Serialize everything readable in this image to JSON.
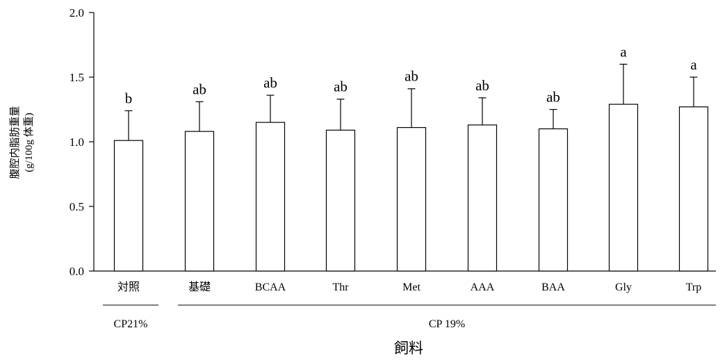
{
  "chart_data": {
    "type": "bar",
    "title": "",
    "xlabel": "飼料",
    "ylabel": [
      "腹腔内脂肪重量",
      "(g/100g 体重)"
    ],
    "ylim": [
      0,
      2.0
    ],
    "yticks": [
      "0.0",
      "0.5",
      "1.0",
      "1.5",
      "2.0"
    ],
    "categories": [
      "対照",
      "基礎",
      "BCAA",
      "Thr",
      "Met",
      "AAA",
      "BAA",
      "Gly",
      "Trp"
    ],
    "values": [
      1.01,
      1.08,
      1.15,
      1.09,
      1.11,
      1.13,
      1.1,
      1.29,
      1.27
    ],
    "error": [
      0.23,
      0.23,
      0.21,
      0.24,
      0.3,
      0.21,
      0.15,
      0.31,
      0.23
    ],
    "significance": [
      "b",
      "ab",
      "ab",
      "ab",
      "ab",
      "ab",
      "ab",
      "a",
      "a"
    ],
    "groups": [
      {
        "label": "CP21%",
        "categories": [
          "対照"
        ]
      },
      {
        "label": "CP 19%",
        "categories": [
          "基礎",
          "BCAA",
          "Thr",
          "Met",
          "AAA",
          "BAA",
          "Gly",
          "Trp"
        ]
      }
    ],
    "grid": false,
    "bar_fill": "#ffffff",
    "bar_stroke": "#000000"
  }
}
